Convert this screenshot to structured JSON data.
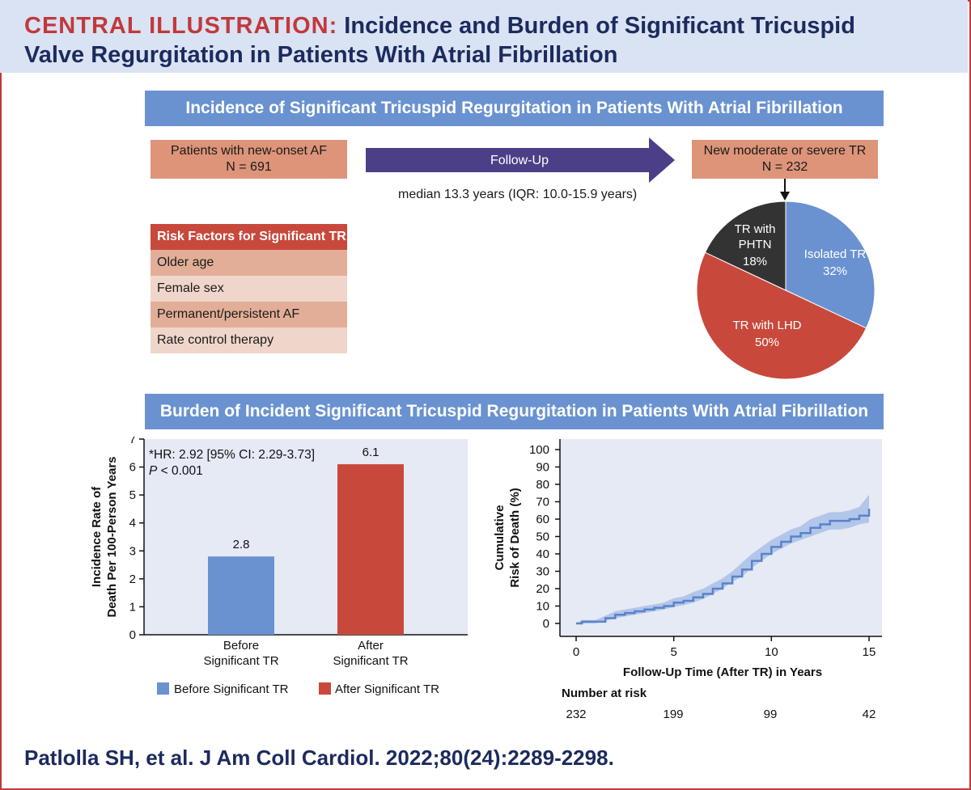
{
  "header": {
    "label": "CENTRAL ILLUSTRATION:",
    "title_line1": "Incidence and Burden of Significant Tricuspid",
    "title_line2": "Valve Regurgitation in Patients With Atrial Fibrillation"
  },
  "section1": {
    "title": "Incidence of Significant Tricuspid Regurgitation in Patients With Atrial Fibrillation",
    "patients_box": {
      "line1": "Patients with new-onset AF",
      "line2": "N = 691"
    },
    "arrow_label": "Follow-Up",
    "median_text": "median 13.3 years (IQR: 10.0-15.9 years)",
    "outcome_box": {
      "line1": "New moderate or severe TR",
      "line2": "N = 232"
    },
    "risk_factors": {
      "title": "Risk Factors for Significant TR",
      "items": [
        "Older age",
        "Female sex",
        "Permanent/persistent AF",
        "Rate control therapy"
      ]
    },
    "pie": {
      "slices": [
        {
          "name": "Isolated TR",
          "percent": 32,
          "label": "32%",
          "color": "#6a92d1"
        },
        {
          "name": "TR with LHD",
          "percent": 50,
          "label": "50%",
          "color": "#c8493c"
        },
        {
          "name_line1": "TR with",
          "name_line2": "PHTN",
          "percent": 18,
          "label": "18%",
          "color": "#333333"
        }
      ]
    }
  },
  "section2": {
    "title": "Burden of Incident Significant Tricuspid Regurgitation in Patients With Atrial Fibrillation",
    "bar_chart": {
      "annotation_line1": "*HR: 2.92 [95% CI: 2.29-3.73]",
      "annotation_p": "P",
      "annotation_rest": " < 0.001",
      "ylabel_line1": "Incidence Rate of",
      "ylabel_line2": "Death Per 100-Person Years",
      "yticks": [
        "0",
        "1",
        "2",
        "3",
        "4",
        "5",
        "6",
        "7"
      ],
      "categories": [
        {
          "line1": "Before",
          "line2": "Significant TR"
        },
        {
          "line1": "After",
          "line2": "Significant TR"
        }
      ],
      "values": [
        2.8,
        6.1
      ],
      "value_labels": [
        "2.8",
        "6.1"
      ],
      "colors": [
        "#6a92d1",
        "#c8493c"
      ],
      "legend": [
        "Before Significant TR",
        "After Significant TR"
      ]
    },
    "km_chart": {
      "ylabel_line1": "Cumulative",
      "ylabel_line2": "Risk of Death (%)",
      "yticks": [
        "0",
        "10",
        "20",
        "30",
        "40",
        "50",
        "60",
        "70",
        "80",
        "90",
        "100"
      ],
      "xticks": [
        "0",
        "5",
        "10",
        "15"
      ],
      "xlabel": "Follow-Up Time (After TR) in Years",
      "risk_title": "Number at risk",
      "risk_values": [
        "232",
        "199",
        "99",
        "42"
      ]
    }
  },
  "citation": "Patlolla SH, et al. J Am Coll Cardiol. 2022;80(24):2289-2298.",
  "chart_data": [
    {
      "type": "bar",
      "categories": [
        "Before Significant TR",
        "After Significant TR"
      ],
      "values": [
        2.8,
        6.1
      ],
      "ylabel": "Incidence Rate of Death Per 100-Person Years",
      "ylim": [
        0,
        7
      ],
      "legend": [
        "Before Significant TR",
        "After Significant TR"
      ]
    },
    {
      "type": "pie",
      "categories": [
        "Isolated TR",
        "TR with LHD",
        "TR with PHTN"
      ],
      "values": [
        32,
        50,
        18
      ]
    },
    {
      "type": "line",
      "xlabel": "Follow-Up Time (After TR) in Years",
      "ylabel": "Cumulative Risk of Death (%)",
      "xlim": [
        0,
        15
      ],
      "ylim": [
        0,
        100
      ],
      "x": [
        0,
        0.3,
        1,
        1.5,
        2,
        2.5,
        3,
        3.5,
        4,
        4.5,
        5,
        5.5,
        6,
        6.5,
        7,
        7.5,
        8,
        8.5,
        9,
        9.5,
        10,
        10.5,
        11,
        11.5,
        12,
        12.5,
        13,
        13.5,
        14,
        14.5,
        15
      ],
      "y": [
        0,
        1,
        1,
        3,
        5,
        6,
        7,
        8,
        9,
        10,
        12,
        13,
        15,
        17,
        20,
        23,
        27,
        31,
        36,
        40,
        44,
        47,
        50,
        52,
        55,
        57,
        59,
        59,
        60,
        62,
        66
      ],
      "ci_lower": [
        0,
        0,
        0,
        1.5,
        3,
        4,
        5,
        6,
        7,
        8,
        9.5,
        10.5,
        12,
        14,
        17,
        20,
        24,
        27,
        32,
        36,
        40,
        43,
        46,
        48,
        50,
        52,
        54,
        54,
        55,
        57,
        58
      ],
      "ci_upper": [
        0,
        2,
        2,
        4.5,
        7,
        8,
        9,
        10,
        11,
        12,
        14.5,
        15.5,
        18,
        20,
        23,
        26,
        30,
        35,
        40,
        44,
        48,
        51,
        54,
        56,
        60,
        62,
        64,
        64,
        65,
        67,
        74
      ],
      "risk_table": {
        "x": [
          0,
          5,
          10,
          15
        ],
        "n": [
          232,
          199,
          99,
          42
        ]
      }
    }
  ]
}
